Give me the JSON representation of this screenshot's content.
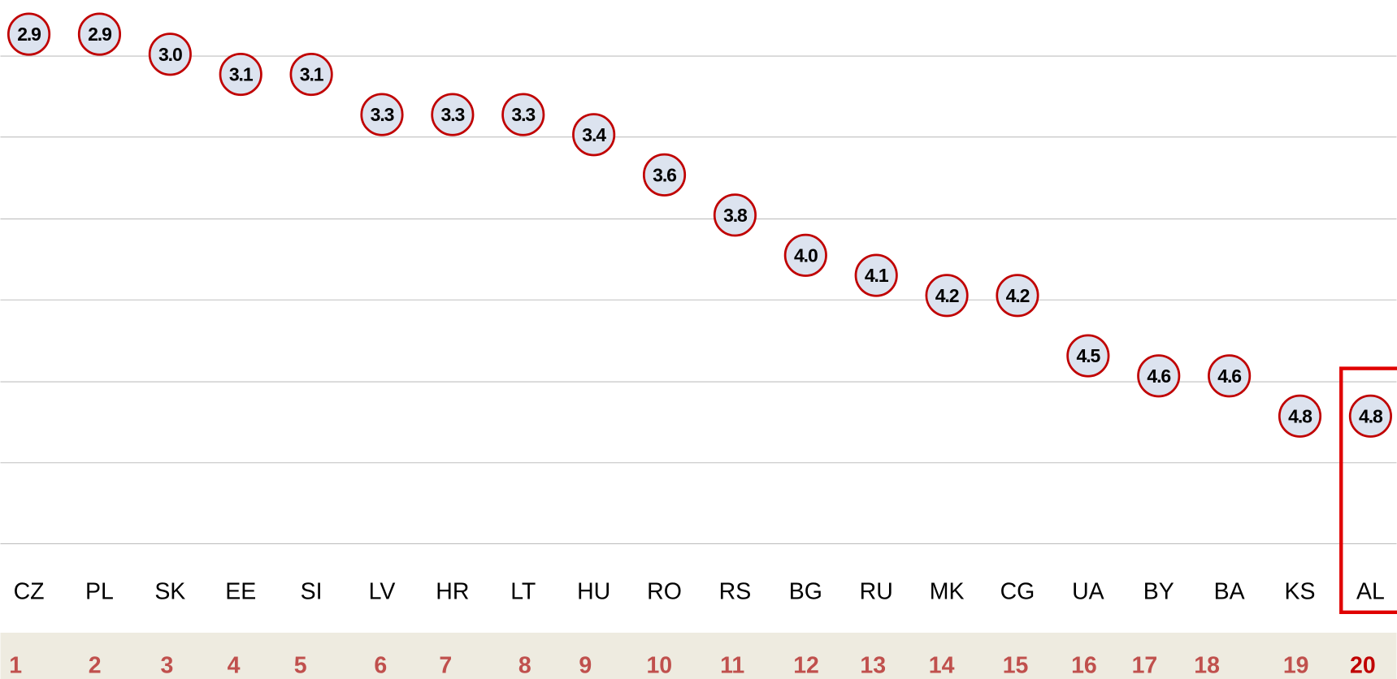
{
  "chart_data": {
    "type": "dot",
    "categories": [
      "CZ",
      "PL",
      "SK",
      "EE",
      "SI",
      "LV",
      "HR",
      "LT",
      "HU",
      "RO",
      "RS",
      "BG",
      "RU",
      "MK",
      "CG",
      "UA",
      "BY",
      "BA",
      "KS",
      "AL"
    ],
    "values": [
      2.9,
      2.9,
      3.0,
      3.1,
      3.1,
      3.3,
      3.3,
      3.3,
      3.4,
      3.6,
      3.8,
      4.0,
      4.1,
      4.2,
      4.2,
      4.5,
      4.6,
      4.6,
      4.8,
      4.8
    ],
    "value_labels": [
      "2.9",
      "2.9",
      "3.0",
      "3.1",
      "3.1",
      "3.3",
      "3.3",
      "3.3",
      "3.4",
      "3.6",
      "3.8",
      "4.0",
      "4.1",
      "4.2",
      "4.2",
      "4.5",
      "4.6",
      "4.6",
      "4.8",
      "4.8"
    ],
    "ranks": [
      1,
      2,
      3,
      4,
      5,
      6,
      7,
      8,
      9,
      10,
      11,
      12,
      13,
      14,
      15,
      16,
      17,
      18,
      19,
      20
    ],
    "ylim": [
      2.73,
      5.435
    ],
    "inverted": true,
    "grid": true,
    "color": "#c00000",
    "fill": "#dce3ef",
    "highlight": 19
  }
}
